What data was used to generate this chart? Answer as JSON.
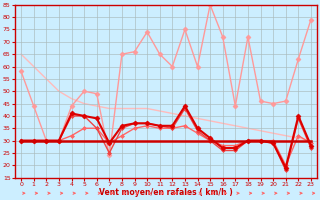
{
  "xlabel": "Vent moyen/en rafales ( km/h )",
  "bg_color": "#cceeff",
  "grid_color": "#aabbbb",
  "xlim": [
    -0.5,
    23.5
  ],
  "ylim": [
    15,
    85
  ],
  "yticks": [
    15,
    20,
    25,
    30,
    35,
    40,
    45,
    50,
    55,
    60,
    65,
    70,
    75,
    80,
    85
  ],
  "xticks": [
    0,
    1,
    2,
    3,
    4,
    5,
    6,
    7,
    8,
    9,
    10,
    11,
    12,
    13,
    14,
    15,
    16,
    17,
    18,
    19,
    20,
    21,
    22,
    23
  ],
  "series": [
    {
      "y": [
        58,
        44,
        30,
        30,
        44,
        50,
        49,
        24,
        65,
        66,
        74,
        65,
        60,
        75,
        60,
        85,
        72,
        44,
        72,
        46,
        45,
        46,
        63,
        79
      ],
      "color": "#ff9999",
      "lw": 1.0,
      "marker": "D",
      "ms": 2.5,
      "zorder": 2
    },
    {
      "y": [
        65,
        60,
        55,
        50,
        47,
        45,
        44,
        43,
        43,
        43,
        43,
        42,
        41,
        40,
        39,
        38,
        37,
        36,
        35,
        34,
        33,
        32,
        31,
        30
      ],
      "color": "#ffbbbb",
      "lw": 1.0,
      "marker": null,
      "ms": 0,
      "zorder": 1
    },
    {
      "y": [
        30,
        30,
        30,
        30,
        41,
        40,
        39,
        29,
        36,
        37,
        37,
        36,
        36,
        44,
        35,
        31,
        27,
        27,
        30,
        30,
        29,
        19,
        40,
        28
      ],
      "color": "#dd0000",
      "lw": 1.5,
      "marker": "D",
      "ms": 2.5,
      "zorder": 5
    },
    {
      "y": [
        30,
        30,
        30,
        30,
        40,
        40,
        35,
        25,
        35,
        37,
        37,
        36,
        35,
        43,
        34,
        30,
        26,
        26,
        30,
        30,
        29,
        18,
        39,
        27
      ],
      "color": "#ee4444",
      "lw": 1.0,
      "marker": "D",
      "ms": 2.0,
      "zorder": 4
    },
    {
      "y": [
        30,
        30,
        30,
        30,
        30,
        30,
        30,
        30,
        30,
        30,
        30,
        30,
        30,
        30,
        30,
        30,
        30,
        30,
        30,
        30,
        30,
        30,
        30,
        30
      ],
      "color": "#cc0000",
      "lw": 1.8,
      "marker": null,
      "ms": 0,
      "zorder": 6
    },
    {
      "y": [
        30,
        30,
        30,
        30,
        32,
        35,
        35,
        29,
        32,
        35,
        36,
        35,
        35,
        36,
        33,
        30,
        28,
        28,
        30,
        30,
        30,
        20,
        32,
        29
      ],
      "color": "#ff6666",
      "lw": 1.0,
      "marker": "D",
      "ms": 2.0,
      "zorder": 3
    }
  ],
  "arrow_color": "#ff6666"
}
